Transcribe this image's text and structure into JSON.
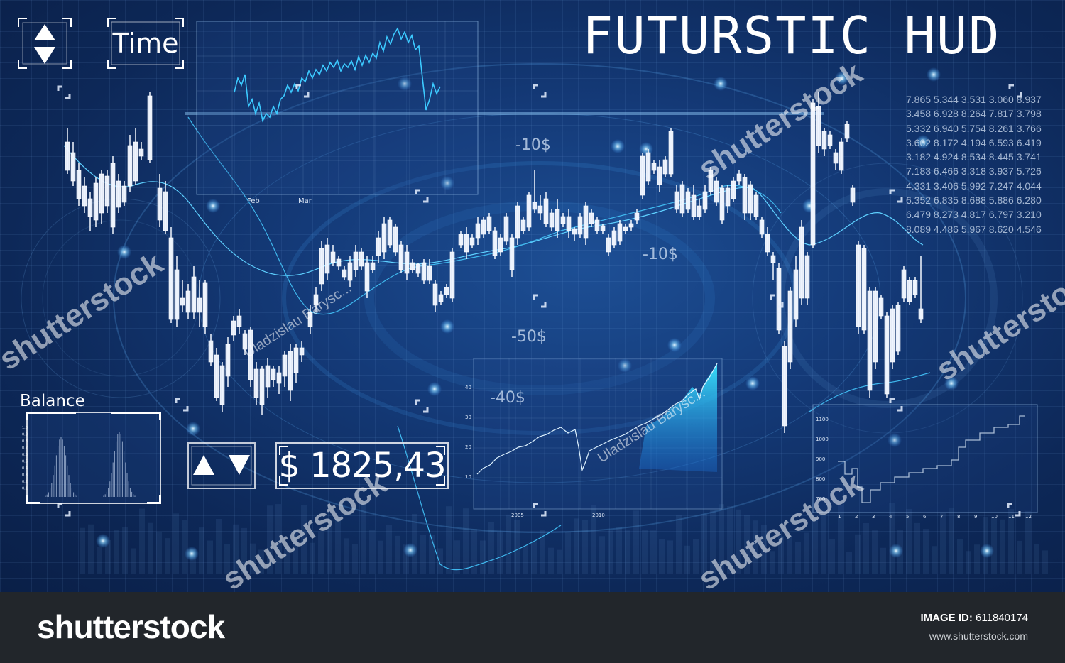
{
  "title": "FUTURSTIC HUD",
  "buttons": {
    "time_label": "Time"
  },
  "balance": {
    "label": "Balance",
    "value": "$ 1825,43"
  },
  "price_labels": [
    "-10$",
    "-10$",
    "-50$",
    "-40$"
  ],
  "numbers_table": [
    "7.865 5.344 3.531 3.060 8.937",
    "3.458 6.928 8.264 7.817 3.798",
    "5.332 6.940 5.754 8.261 3.766",
    "3.602 8.172 4.194 6.593 6.419",
    "3.182 4.924 8.534 8.445 3.741",
    "7.183 6.466 3.318 3.937 5.726",
    "4.331 3.406 5.992 7.247 4.044",
    "6.352 6.835 8.688 5.886 6.280",
    "6.479 8.273 4.817 6.797 3.210",
    "8.089 4.486 5.967 8.620 4.546"
  ],
  "mini_chart_top": {
    "x_labels": [
      "Feb",
      "Mar"
    ]
  },
  "area_chart": {
    "y_labels": [
      "40",
      "30",
      "20",
      "10"
    ],
    "x_labels": [
      "2005",
      "2010"
    ]
  },
  "step_chart": {
    "y_labels": [
      "1100",
      "1000",
      "900",
      "800",
      "700"
    ],
    "x_labels": [
      "1",
      "2",
      "3",
      "4",
      "5",
      "6",
      "7",
      "8",
      "9",
      "10",
      "11",
      "12"
    ]
  },
  "balance_chart": {
    "y_labels": [
      "1.0",
      "0.9",
      "0.8",
      "0.7",
      "0.6",
      "0.5",
      "0.4",
      "0.3",
      "0.2",
      "0.1"
    ]
  },
  "watermark": {
    "brand": "shutterstock",
    "author": "Uladzislau Barysc..."
  },
  "footer": {
    "logo": "shutterstock",
    "image_id_label": "IMAGE ID:",
    "image_id": "611840174",
    "url": "www.shutterstock.com"
  },
  "colors": {
    "background": "#143a78",
    "accent": "#3fd6ff",
    "text": "#ffffff",
    "footer": "#22262b"
  },
  "icons": [
    "up-arrow-icon",
    "down-arrow-icon"
  ]
}
